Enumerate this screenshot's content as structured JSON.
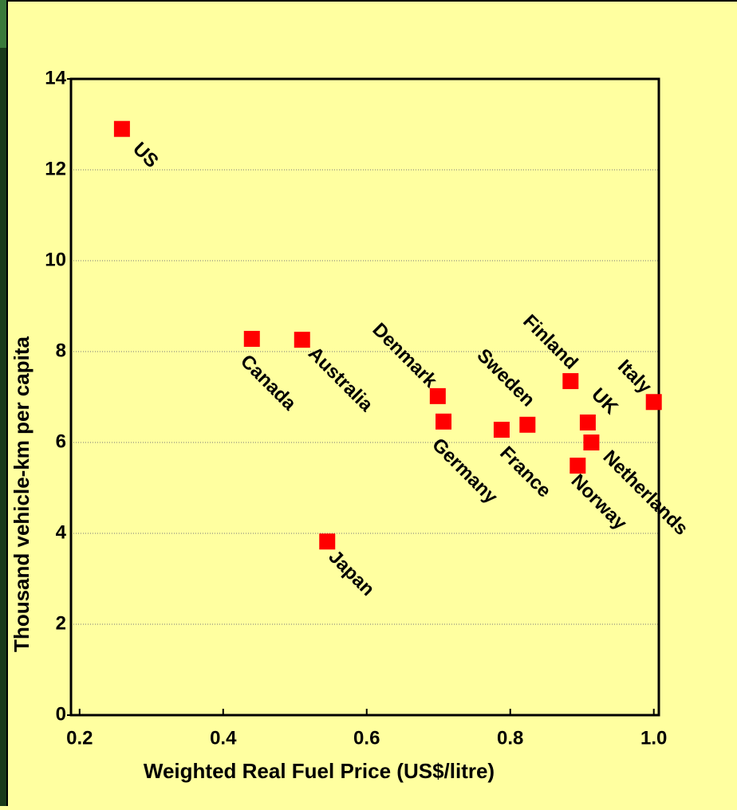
{
  "chart_data": {
    "type": "scatter",
    "x_label": "Weighted Real Fuel Price (US$/litre)",
    "y_label": "Thousand vehicle-km per capita",
    "labels": [
      "US",
      "Canada",
      "Australia",
      "Japan",
      "Denmark",
      "Germany",
      "France",
      "Sweden",
      "Finland",
      "UK",
      "Norway",
      "Netherlands",
      "Italy"
    ],
    "x": [
      0.259,
      0.44,
      0.51,
      0.545,
      0.699,
      0.707,
      0.788,
      0.824,
      0.884,
      0.908,
      0.894,
      0.913,
      1.0
    ],
    "values": [
      12.9,
      8.28,
      8.26,
      3.82,
      7.02,
      6.46,
      6.28,
      6.39,
      7.35,
      6.44,
      5.49,
      6.0,
      6.89
    ],
    "color": "#ff0000",
    "xlim": [
      0.188,
      1.007
    ],
    "ylim": [
      0,
      14
    ],
    "xticks": [
      0.2,
      0.4,
      0.6,
      0.8,
      {
        "value": 1,
        "label": "1.0"
      }
    ],
    "yticks": [
      0,
      2,
      4,
      6,
      8,
      10,
      12,
      14
    ],
    "grid": true
  }
}
